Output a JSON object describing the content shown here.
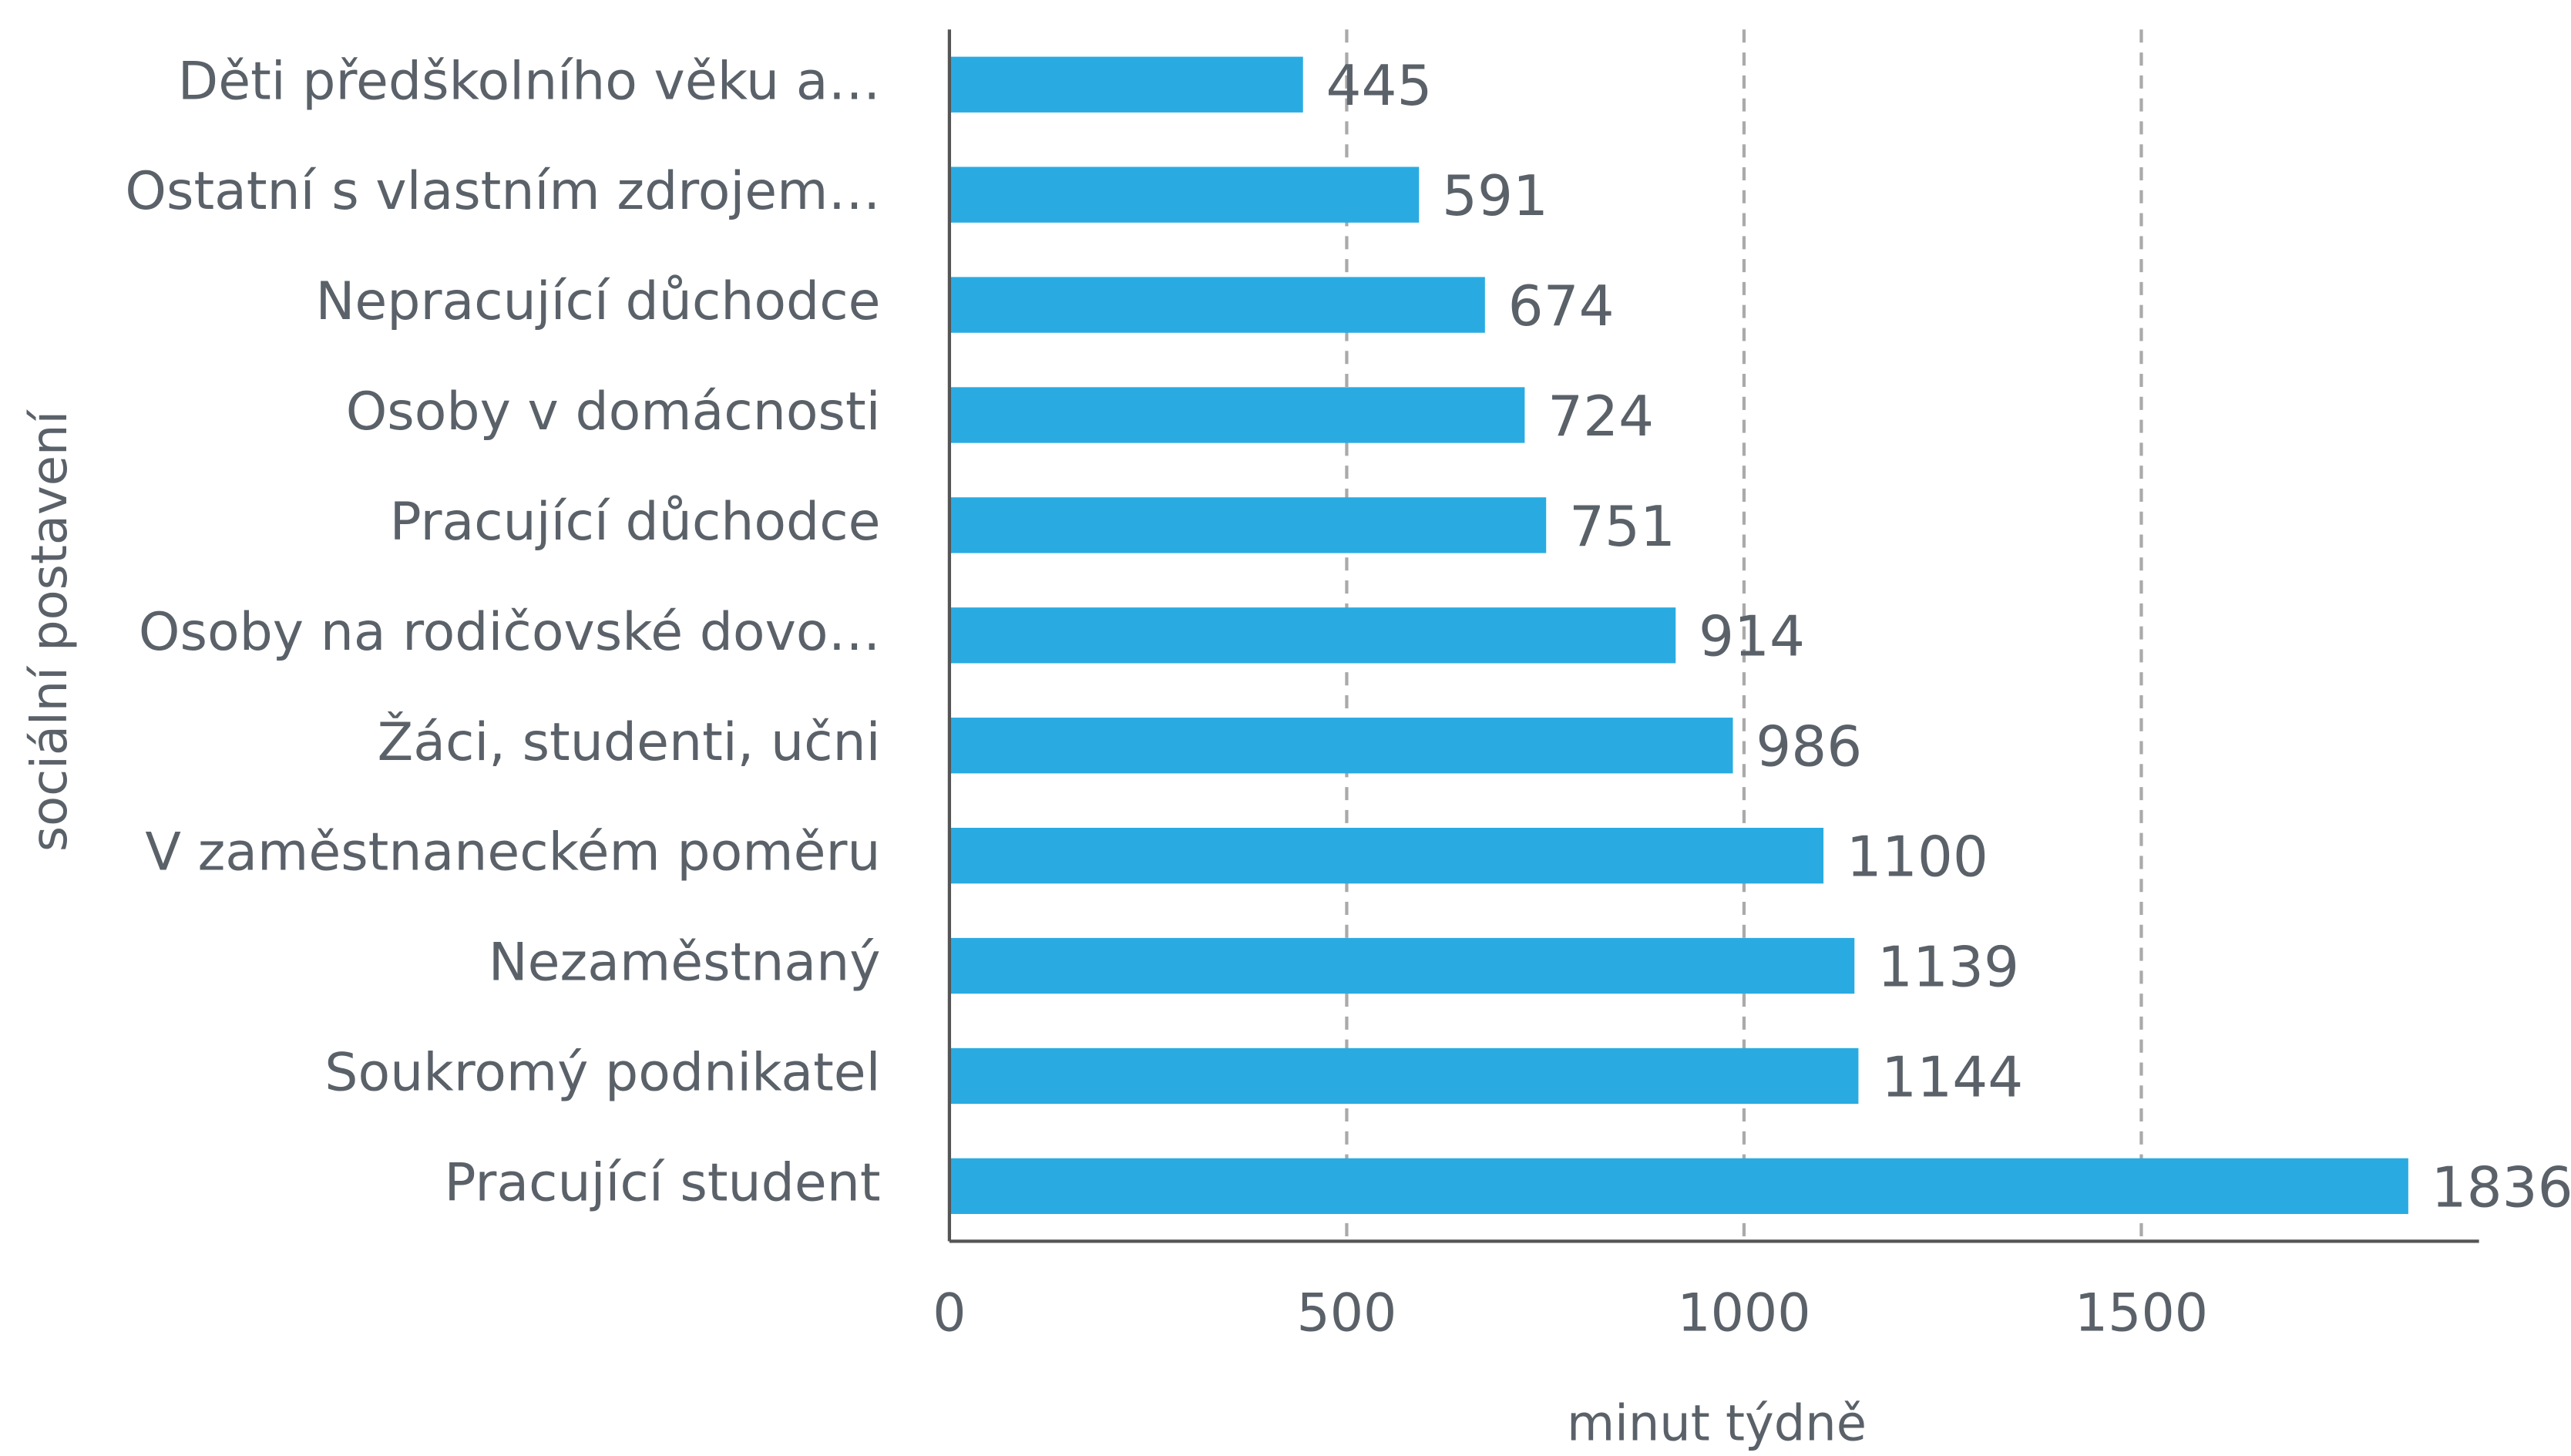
{
  "chart_data": {
    "type": "bar",
    "orientation": "horizontal",
    "y_label": "sociální postavení",
    "x_label": "minut týdně",
    "categories": [
      "Děti předškolního věku a…",
      "Ostatní s vlastním zdrojem…",
      "Nepracující důchodce",
      "Osoby v domácnosti",
      "Pracující důchodce",
      "Osoby na rodičovské dovo…",
      "Žáci, studenti, učni",
      "V zaměstnaneckém poměru",
      "Nezaměstnaný",
      "Soukromý podnikatel",
      "Pracující student"
    ],
    "values": [
      445,
      591,
      674,
      724,
      751,
      914,
      986,
      1100,
      1139,
      1144,
      1836
    ],
    "color": "#29abe2",
    "xlim": [
      0,
      1925
    ],
    "xticks": [
      0,
      500,
      1000,
      1500
    ],
    "grid": true
  }
}
